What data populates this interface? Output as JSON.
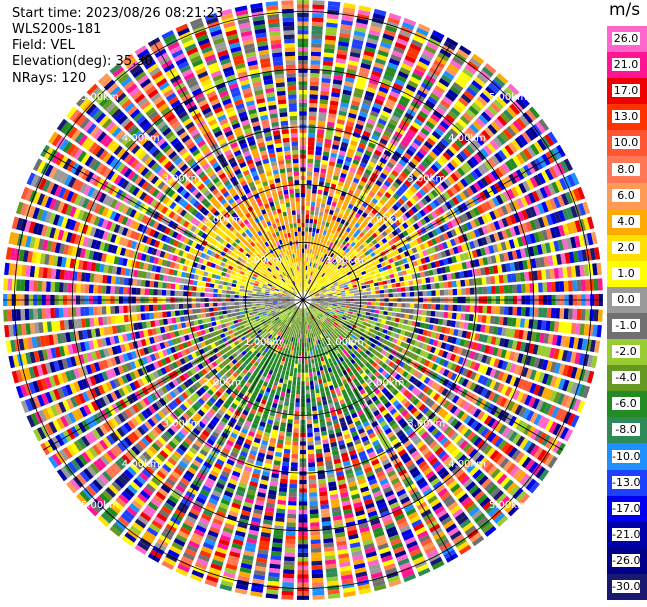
{
  "header": {
    "start_time": "Start time: 2023/08/26 08:21:23",
    "site": "WLS200s-181",
    "field": "Field: VEL",
    "elevation": "Elevation(deg): 35.30",
    "nrays": "NRays: 120"
  },
  "colorbar": {
    "unit": "m/s",
    "labels": [
      "26.0",
      "21.0",
      "17.0",
      "13.0",
      "10.0",
      "8.0",
      "6.0",
      "4.0",
      "2.0",
      "1.0",
      "0.0",
      "-1.0",
      "-2.0",
      "-4.0",
      "-6.0",
      "-8.0",
      "-10.0",
      "-13.0",
      "-17.0",
      "-21.0",
      "-26.0",
      "-30.0"
    ],
    "colors": [
      "#ff66cc",
      "#ff1493",
      "#ee0000",
      "#ff3300",
      "#ff5533",
      "#ff7755",
      "#ff9a55",
      "#ffaa00",
      "#ffe000",
      "#ffff00",
      "#9a9a9a",
      "#707070",
      "#99cc33",
      "#669922",
      "#228b22",
      "#2e8b57",
      "#1e90ff",
      "#1e40ff",
      "#0000ee",
      "#0000aa",
      "#000088",
      "#191970"
    ]
  },
  "range_labels": [
    "1.00km",
    "2.00km",
    "3.00km",
    "4.00km",
    "5.00km"
  ],
  "background_color": "#ffffff"
}
